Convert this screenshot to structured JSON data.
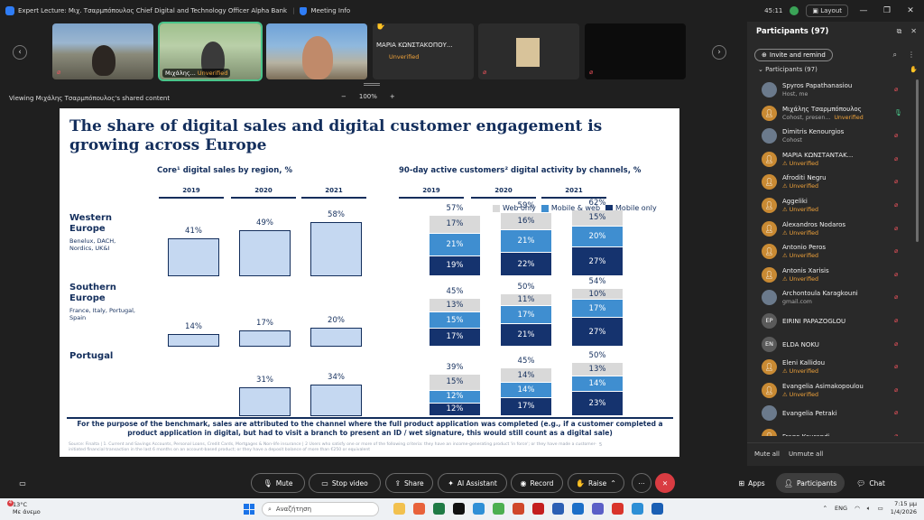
{
  "window": {
    "title": "Expert Lecture: Μιχ. Τσαρμπόπουλος Chief Digital and Technology Officer Alpha Bank",
    "meeting_info": "Meeting Info",
    "time": "45:11",
    "layout_label": "Layout"
  },
  "video_strip": {
    "tiles": [
      {
        "name": "",
        "status": ""
      },
      {
        "name": "Μιχάλης...",
        "status": "Unverified"
      },
      {
        "name": "",
        "status": ""
      },
      {
        "name": "ΜΑΡΙΑ ΚΩΝΣΤΑΚΟΠΟΥ...",
        "status": "Unverified"
      },
      {
        "name": "",
        "status": ""
      },
      {
        "name": "",
        "status": ""
      }
    ]
  },
  "share_bar": {
    "viewing": "Viewing Μιχάλης Τσαρμπόπουλος's shared content",
    "zoom": "100%",
    "zoom_out": "−",
    "zoom_in": "+"
  },
  "slide": {
    "title": "The share of digital sales and digital customer engagement is growing across Europe",
    "left_title": "Core¹ digital sales by region, %",
    "right_title": "90-day active customers² digital activity by channels, %",
    "years": [
      "2019",
      "2020",
      "2021"
    ],
    "legend": [
      "Web only",
      "Mobile & web",
      "Mobile only"
    ],
    "regions": [
      {
        "name": "Western Europe",
        "sub": "Benelux, DACH, Nordics, UK&I"
      },
      {
        "name": "Southern Europe",
        "sub": "France, Italy, Portugal, Spain"
      },
      {
        "name": "Portugal",
        "sub": ""
      }
    ],
    "footer": "For the purpose of the benchmark, sales are attributed to the channel where the full product application was completed (e.g., if a customer completed a product application in digital, but had to visit a branch to present an ID / wet signature, this would still count as a digital sale)",
    "source": "Source: Finalta | 1. Current and Savings Accounts, Personal Loans, Credit Cards, Mortgages & Non-life insurance | 2 Users who satisfy one or more of the following criteria: they have an income-generating product 'in force'; or they have made a customer-initiated financial transaction in the last 6 months on an account-based product; or they have a deposit balance of more than €250 or equivalent",
    "page_number": "5"
  },
  "chart_data": [
    {
      "type": "bar",
      "title": "Core¹ digital sales by region, %",
      "categories": [
        "2019",
        "2020",
        "2021"
      ],
      "series": [
        {
          "name": "Western Europe",
          "values": [
            41,
            49,
            58
          ]
        },
        {
          "name": "Southern Europe",
          "values": [
            14,
            17,
            20
          ]
        },
        {
          "name": "Portugal",
          "values": [
            null,
            31,
            34
          ]
        }
      ],
      "value_labels": [
        [
          "41%",
          "49%",
          "58%"
        ],
        [
          "14%",
          "17%",
          "20%"
        ],
        [
          "",
          "31%",
          "34%"
        ]
      ],
      "ylim": [
        0,
        60
      ]
    },
    {
      "type": "bar",
      "stacked": true,
      "title": "90-day active customers² digital activity by channels, %",
      "categories": [
        "2019",
        "2020",
        "2021"
      ],
      "legend": [
        "Web only",
        "Mobile & web",
        "Mobile only"
      ],
      "colors": {
        "Web only": "#d9d9d9",
        "Mobile & web": "#3f8ed0",
        "Mobile only": "#15336e"
      },
      "groups": [
        {
          "region": "Western Europe",
          "totals": [
            57,
            59,
            62
          ],
          "series": [
            {
              "name": "Mobile only",
              "values": [
                19,
                22,
                27
              ]
            },
            {
              "name": "Mobile & web",
              "values": [
                21,
                21,
                20
              ]
            },
            {
              "name": "Web only",
              "values": [
                17,
                16,
                15
              ]
            }
          ]
        },
        {
          "region": "Southern Europe",
          "totals": [
            45,
            50,
            54
          ],
          "series": [
            {
              "name": "Mobile only",
              "values": [
                17,
                21,
                27
              ]
            },
            {
              "name": "Mobile & web",
              "values": [
                15,
                17,
                17
              ]
            },
            {
              "name": "Web only",
              "values": [
                13,
                11,
                10
              ]
            }
          ]
        },
        {
          "region": "Portugal",
          "totals": [
            39,
            45,
            50
          ],
          "series": [
            {
              "name": "Mobile only",
              "values": [
                12,
                17,
                23
              ]
            },
            {
              "name": "Mobile & web",
              "values": [
                12,
                14,
                14
              ]
            },
            {
              "name": "Web only",
              "values": [
                15,
                14,
                13
              ]
            }
          ]
        }
      ],
      "ylim": [
        0,
        65
      ]
    }
  ],
  "participants": {
    "title": "Participants (97)",
    "invite": "Invite and remind",
    "list_header": "Participants (97)",
    "people": [
      {
        "name": "Spyros Papathanasiou",
        "sub": "Host, me",
        "warn": false,
        "initials": "",
        "mic": "muted"
      },
      {
        "name": "Μιχάλης Τσαρμπόπουλος",
        "sub": "Cohost, presen...",
        "sub2": "Unverified",
        "warn": false,
        "initials": "",
        "mic": "on"
      },
      {
        "name": "Dimitris Kenourgios",
        "sub": "Cohost",
        "warn": false,
        "initials": "",
        "mic": "muted"
      },
      {
        "name": "ΜΑΡΙΑ ΚΩΝΣΤΑΝΤΑΚ...",
        "sub": "Unverified",
        "warn": true,
        "initials": "",
        "mic": "muted"
      },
      {
        "name": "Afroditi Negru",
        "sub": "Unverified",
        "warn": true,
        "initials": "",
        "mic": "muted"
      },
      {
        "name": "Aggeliki",
        "sub": "Unverified",
        "warn": true,
        "initials": "",
        "mic": "muted"
      },
      {
        "name": "Alexandros Nodaros",
        "sub": "Unverified",
        "warn": true,
        "initials": "",
        "mic": "muted"
      },
      {
        "name": "Antonio Peros",
        "sub": "Unverified",
        "warn": true,
        "initials": "",
        "mic": "muted"
      },
      {
        "name": "Antonis Xarisis",
        "sub": "Unverified",
        "warn": true,
        "initials": "",
        "mic": "muted"
      },
      {
        "name": "Archontoula Karagkouni",
        "sub": "gmail.com",
        "warn": false,
        "initials": "",
        "mic": "muted"
      },
      {
        "name": "EIRINI PAPAZOGLOU",
        "sub": "",
        "warn": false,
        "initials": "EP",
        "mic": "muted"
      },
      {
        "name": "ELDA NOKU",
        "sub": "",
        "warn": false,
        "initials": "EN",
        "mic": "muted"
      },
      {
        "name": "Eleni Kallidou",
        "sub": "Unverified",
        "warn": true,
        "initials": "",
        "mic": "muted"
      },
      {
        "name": "Evangelia Asimakopoulou",
        "sub": "Unverified",
        "warn": true,
        "initials": "",
        "mic": "muted"
      },
      {
        "name": "Evangelia Petraki",
        "sub": "",
        "warn": false,
        "initials": "",
        "mic": "muted"
      },
      {
        "name": "Frago Kourandi",
        "sub": "",
        "warn": false,
        "initials": "",
        "mic": "muted"
      }
    ],
    "mute_all": "Mute all",
    "unmute_all": "Unmute all"
  },
  "controls": {
    "mute": "Mute",
    "stop_video": "Stop video",
    "share": "Share",
    "ai_assistant": "AI Assistant",
    "record": "Record",
    "raise": "Raise",
    "more": "⋯",
    "end": "✕",
    "apps": "Apps",
    "participants": "Participants",
    "chat": "Chat"
  },
  "taskbar": {
    "weather_temp": "13°C",
    "weather_desc": "Με άνεμο",
    "weather_badge": "4",
    "search_placeholder": "Αναζήτηση",
    "lang": "ENG",
    "time": "7:15 μμ",
    "date": "1/4/2026"
  }
}
